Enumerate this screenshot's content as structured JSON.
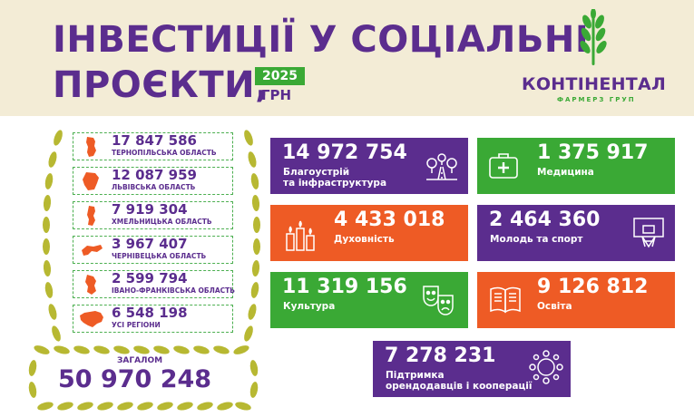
{
  "header": {
    "title_line1": "ІНВЕСТИЦІЇ У СОЦІАЛЬНІ",
    "title_line2": "ПРОЄКТИ,",
    "year": "2025",
    "unit": "ГРН",
    "logo_name": "КОНТІНЕНТАЛ",
    "logo_sub": "ФАРМЕРЗ ГРУП"
  },
  "regions": [
    {
      "value": "17 847 586",
      "name": "ТЕРНОПІЛЬСЬКА ОБЛАСТЬ"
    },
    {
      "value": "12 087 959",
      "name": "ЛЬВІВСЬКА ОБЛАСТЬ"
    },
    {
      "value": "7 919 304",
      "name": "ХМЕЛЬНИЦЬКА ОБЛАСТЬ"
    },
    {
      "value": "3 967 407",
      "name": "ЧЕРНІВЕЦЬКА ОБЛАСТЬ"
    },
    {
      "value": "2 599 794",
      "name": "ІВАНО-ФРАНКІВСЬКА ОБЛАСТЬ"
    },
    {
      "value": "6 548 198",
      "name": "УСІ РЕГІОНИ"
    }
  ],
  "total": {
    "label": "ЗАГАЛОМ",
    "value": "50 970 248"
  },
  "categories": [
    {
      "value": "14 972 754",
      "label_line1": "Благоустрій",
      "label_line2": "та інфраструктура",
      "icon": "road-trees-icon"
    },
    {
      "value": "1 375 917",
      "label_line1": "Медицина",
      "icon": "first-aid-kit-icon"
    },
    {
      "value": "4 433 018",
      "label_line1": "Духовність",
      "icon": "candles-icon"
    },
    {
      "value": "2 464 360",
      "label_line1": "Молодь та спорт",
      "icon": "basketball-hoop-icon"
    },
    {
      "value": "11 319 156",
      "label_line1": "Культура",
      "icon": "theater-masks-icon"
    },
    {
      "value": "9 126 812",
      "label_line1": "Освіта",
      "icon": "open-book-icon"
    },
    {
      "value": "7 278 231",
      "label_line1": "Підтримка",
      "label_line2": "орендодавців і кооперації",
      "icon": "people-circle-icon"
    }
  ],
  "colors": {
    "purple": "#5b2d8e",
    "green": "#3aa935",
    "orange": "#ee5b25",
    "header_bg": "#f3ecd6",
    "wheat": "#b7b832"
  }
}
